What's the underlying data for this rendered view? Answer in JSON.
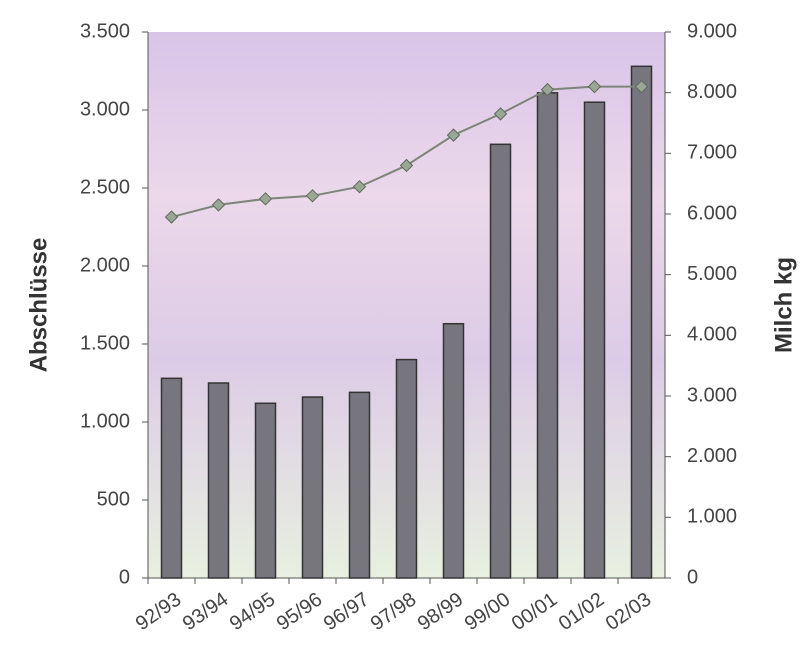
{
  "chart_data": {
    "type": "bar",
    "categories": [
      "92/93",
      "93/94",
      "94/95",
      "95/96",
      "96/97",
      "97/98",
      "98/99",
      "99/00",
      "00/01",
      "01/02",
      "02/03"
    ],
    "y_label": "Abschlüsse",
    "y2_label": "Milch kg",
    "series": [
      {
        "type": "bar",
        "color": "#77767f",
        "values": [
          1280,
          1250,
          1120,
          1160,
          1190,
          1400,
          1630,
          2780,
          3110,
          3050,
          3280
        ]
      },
      {
        "type": "line",
        "axis": "y2",
        "color": "#7d8579",
        "values": [
          5950,
          6150,
          6250,
          6300,
          6450,
          6800,
          7300,
          7650,
          8050,
          8100,
          8100
        ]
      }
    ],
    "ylim": [
      0,
      3500
    ],
    "yticks": [
      0,
      500,
      {
        "value": 1000,
        "label": "1.000"
      },
      {
        "value": 1500,
        "label": "1.500"
      },
      {
        "value": 2000,
        "label": "2.000"
      },
      {
        "value": 2500,
        "label": "2.500"
      },
      {
        "value": 3000,
        "label": "3.000"
      },
      {
        "value": 3500,
        "label": "3.500"
      }
    ],
    "y2lim": [
      0,
      9000
    ],
    "y2ticks": [
      0,
      {
        "value": 1000,
        "label": "1.000"
      },
      {
        "value": 2000,
        "label": "2.000"
      },
      {
        "value": 3000,
        "label": "3.000"
      },
      {
        "value": 4000,
        "label": "4.000"
      },
      {
        "value": 5000,
        "label": "5.000"
      },
      {
        "value": 6000,
        "label": "6.000"
      },
      {
        "value": 7000,
        "label": "7.000"
      },
      {
        "value": 8000,
        "label": "8.000"
      },
      {
        "value": 9000,
        "label": "9.000"
      }
    ],
    "grid": false
  }
}
